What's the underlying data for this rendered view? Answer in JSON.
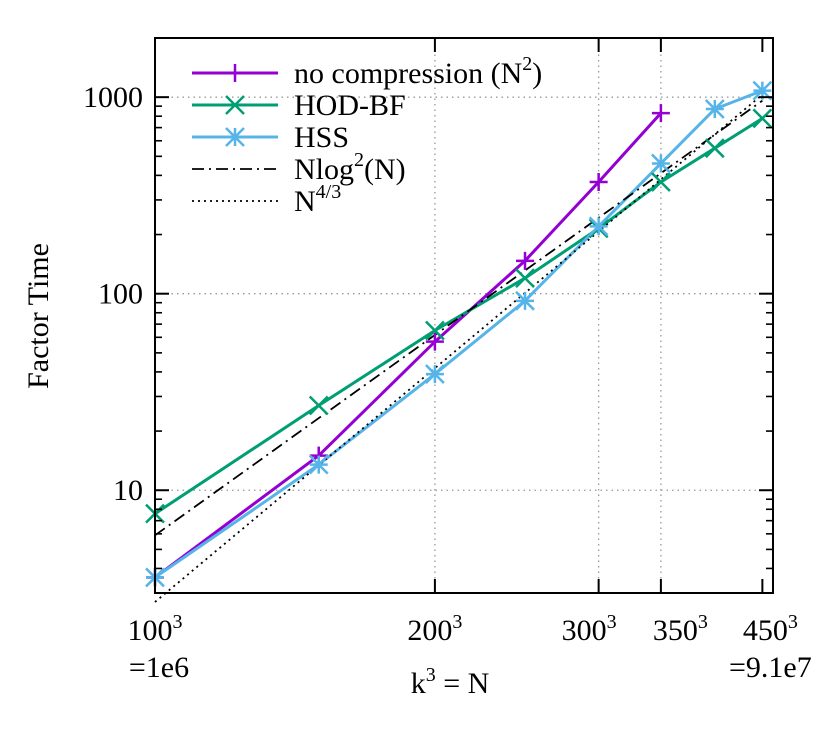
{
  "chart_data": {
    "type": "line",
    "xscale": "log",
    "yscale": "log",
    "x_tick_k": [
      100,
      200,
      300,
      350,
      450
    ],
    "x_tick_labels": [
      "100",
      "200",
      "300",
      "350",
      "450"
    ],
    "x_tick_exponent": "3",
    "x_tick_sublabels": [
      {
        "k": 100,
        "text": "=1e6"
      },
      {
        "k": 450,
        "text": "=9.1e7"
      }
    ],
    "y_ticks": [
      10,
      100,
      1000
    ],
    "y_tick_labels": [
      "10",
      "100",
      "1000"
    ],
    "ylabel": "Factor Time",
    "xlabel": {
      "base": "k",
      "sup": "3",
      "rest": " = N"
    },
    "grid": true,
    "legend_position": "top-left",
    "series": [
      {
        "id": "nocomp",
        "legend": {
          "pre": "no compression (N",
          "sup": "2",
          "post": ")"
        },
        "color": "#9400d3",
        "marker": "plus",
        "dash": "solid",
        "k": [
          100,
          150,
          200,
          250,
          300,
          350
        ],
        "values": [
          3.6,
          15,
          57,
          147,
          370,
          830
        ]
      },
      {
        "id": "hodbf",
        "legend": {
          "pre": "HOD-BF",
          "sup": "",
          "post": ""
        },
        "color": "#009e73",
        "marker": "cross",
        "dash": "solid",
        "k": [
          100,
          150,
          200,
          250,
          300,
          350,
          400,
          450
        ],
        "values": [
          7.6,
          27,
          65,
          120,
          215,
          370,
          550,
          780
        ]
      },
      {
        "id": "hss",
        "legend": {
          "pre": "HSS",
          "sup": "",
          "post": ""
        },
        "color": "#56b4e9",
        "marker": "star",
        "dash": "solid",
        "k": [
          100,
          150,
          200,
          250,
          300,
          350,
          400,
          450
        ],
        "values": [
          3.6,
          13.5,
          39,
          92,
          220,
          460,
          870,
          1080
        ]
      },
      {
        "id": "nlog2n",
        "legend": {
          "pre": "Nlog",
          "sup": "2",
          "post": "(N)"
        },
        "color": "#000000",
        "marker": "none",
        "dash": "dashdot",
        "k": [
          100,
          450
        ],
        "values": [
          5.9,
          960
        ]
      },
      {
        "id": "n43",
        "legend": {
          "pre": "N",
          "sup": "4/3",
          "post": ""
        },
        "color": "#000000",
        "marker": "none",
        "dash": "dotted",
        "k": [
          100,
          450
        ],
        "values": [
          2.7,
          1030
        ]
      }
    ],
    "xlim_k": [
      100,
      462
    ],
    "ylim": [
      3,
      2000
    ]
  }
}
